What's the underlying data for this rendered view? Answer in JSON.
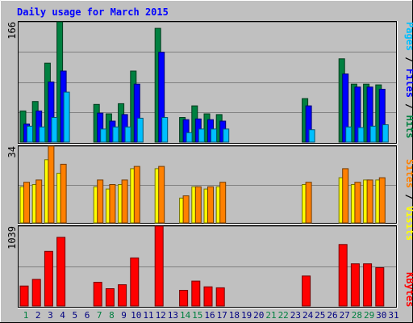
{
  "chart_data": [
    {
      "type": "bar",
      "title": "Daily usage for March 2015",
      "panel": "top",
      "y_max_label": "166",
      "right_label_parts": [
        {
          "text": "Pages",
          "color": "#00bfff"
        },
        {
          "text": " / ",
          "color": "#000000"
        },
        {
          "text": "Files",
          "color": "#0000ff"
        },
        {
          "text": " / ",
          "color": "#000000"
        },
        {
          "text": "Hits",
          "color": "#008040"
        }
      ],
      "ylim": [
        0,
        166
      ],
      "series": [
        {
          "name": "Hits",
          "color": "#008040",
          "values": [
            43,
            56,
            109,
            166,
            0,
            0,
            52,
            39,
            53,
            98,
            0,
            157,
            0,
            34,
            50,
            39,
            38,
            0,
            0,
            0,
            0,
            0,
            0,
            60,
            0,
            0,
            115,
            80,
            80,
            79,
            0
          ]
        },
        {
          "name": "Files",
          "color": "#0000ff",
          "values": [
            25,
            43,
            83,
            98,
            0,
            0,
            40,
            29,
            38,
            80,
            0,
            124,
            0,
            31,
            32,
            31,
            29,
            0,
            0,
            0,
            0,
            0,
            0,
            50,
            0,
            0,
            94,
            76,
            76,
            73,
            0
          ]
        },
        {
          "name": "Pages",
          "color": "#00bfff",
          "values": [
            22,
            21,
            34,
            69,
            0,
            0,
            18,
            21,
            21,
            33,
            0,
            34,
            0,
            13,
            18,
            18,
            18,
            0,
            0,
            0,
            0,
            0,
            0,
            17,
            0,
            0,
            21,
            20,
            22,
            24,
            0
          ]
        }
      ]
    },
    {
      "type": "bar",
      "panel": "middle",
      "y_max_label": "34",
      "right_label_parts": [
        {
          "text": "Sites",
          "color": "#ff8000"
        },
        {
          "text": " / ",
          "color": "#000000"
        },
        {
          "text": "Visits",
          "color": "#ffff00"
        }
      ],
      "ylim": [
        0,
        34
      ],
      "series": [
        {
          "name": "Visits",
          "color": "#ffff00",
          "values": [
            16,
            17,
            28,
            22,
            0,
            0,
            16,
            15,
            17,
            24,
            0,
            24,
            0,
            11,
            16,
            15,
            16,
            0,
            0,
            0,
            0,
            0,
            0,
            17,
            0,
            0,
            20,
            17,
            19,
            19,
            0
          ]
        },
        {
          "name": "Sites",
          "color": "#ff8000",
          "values": [
            18,
            19,
            34,
            26,
            0,
            0,
            19,
            17,
            19,
            25,
            0,
            25,
            0,
            12,
            16,
            16,
            18,
            0,
            0,
            0,
            0,
            0,
            0,
            18,
            0,
            0,
            24,
            18,
            19,
            20,
            0
          ]
        }
      ]
    },
    {
      "type": "bar",
      "panel": "bottom",
      "y_max_label": "1039",
      "right_label_parts": [
        {
          "text": "KBytes",
          "color": "#ff0000"
        }
      ],
      "ylim": [
        0,
        1039
      ],
      "series": [
        {
          "name": "KBytes",
          "color": "#ff0000",
          "values": [
            260,
            346,
            710,
            893,
            0,
            0,
            309,
            226,
            277,
            626,
            0,
            1039,
            0,
            205,
            324,
            250,
            237,
            0,
            0,
            0,
            0,
            0,
            0,
            390,
            0,
            0,
            800,
            549,
            549,
            498,
            0
          ]
        }
      ]
    }
  ],
  "x_days": [
    {
      "label": "1",
      "color": "#008040"
    },
    {
      "label": "2",
      "color": "#000080"
    },
    {
      "label": "3",
      "color": "#000080"
    },
    {
      "label": "4",
      "color": "#000080"
    },
    {
      "label": "5",
      "color": "#000080"
    },
    {
      "label": "6",
      "color": "#000080"
    },
    {
      "label": "7",
      "color": "#008040"
    },
    {
      "label": "8",
      "color": "#008040"
    },
    {
      "label": "9",
      "color": "#000080"
    },
    {
      "label": "10",
      "color": "#000080"
    },
    {
      "label": "11",
      "color": "#000080"
    },
    {
      "label": "12",
      "color": "#000080"
    },
    {
      "label": "13",
      "color": "#000080"
    },
    {
      "label": "14",
      "color": "#008040"
    },
    {
      "label": "15",
      "color": "#008040"
    },
    {
      "label": "16",
      "color": "#000080"
    },
    {
      "label": "17",
      "color": "#000080"
    },
    {
      "label": "18",
      "color": "#000080"
    },
    {
      "label": "19",
      "color": "#000080"
    },
    {
      "label": "20",
      "color": "#000080"
    },
    {
      "label": "21",
      "color": "#008040"
    },
    {
      "label": "22",
      "color": "#008040"
    },
    {
      "label": "23",
      "color": "#000080"
    },
    {
      "label": "24",
      "color": "#000080"
    },
    {
      "label": "25",
      "color": "#000080"
    },
    {
      "label": "26",
      "color": "#000080"
    },
    {
      "label": "27",
      "color": "#000080"
    },
    {
      "label": "28",
      "color": "#008040"
    },
    {
      "label": "29",
      "color": "#008040"
    },
    {
      "label": "30",
      "color": "#000080"
    },
    {
      "label": "31",
      "color": "#000080"
    }
  ],
  "colors": {
    "background": "#c0c0c0",
    "title": "#0000ff",
    "gridline": "#808080"
  }
}
